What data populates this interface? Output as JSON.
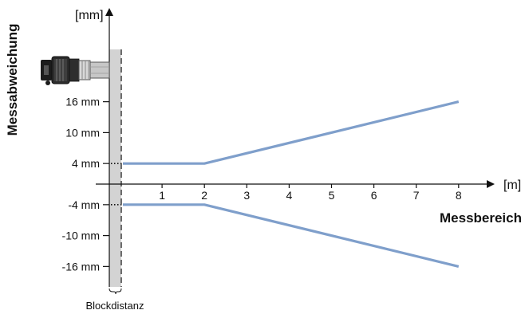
{
  "chart_data": {
    "type": "line",
    "xlabel": "Messbereich",
    "x_unit": "[m]",
    "ylabel": "Messabweichung",
    "y_unit": "[mm]",
    "xlim": [
      0,
      8
    ],
    "x_ticks": [
      "1",
      "2",
      "3",
      "4",
      "5",
      "6",
      "7",
      "8"
    ],
    "y_ticks": [
      {
        "value": 16,
        "label": "16 mm"
      },
      {
        "value": 10,
        "label": "10 mm"
      },
      {
        "value": 4,
        "label": "4 mm"
      },
      {
        "value": -4,
        "label": "-4 mm"
      },
      {
        "value": -10,
        "label": "-10 mm"
      },
      {
        "value": -16,
        "label": "-16 mm"
      }
    ],
    "series": [
      {
        "x": [
          0,
          2,
          8
        ],
        "y": [
          4,
          4,
          16
        ]
      },
      {
        "x": [
          0,
          2,
          8
        ],
        "y": [
          -4,
          -4,
          -16
        ]
      }
    ],
    "blind_zone_label": "Blockdistanz",
    "line_color": "#7f9fcb",
    "blind_zone_color": "#d3d3d3"
  }
}
